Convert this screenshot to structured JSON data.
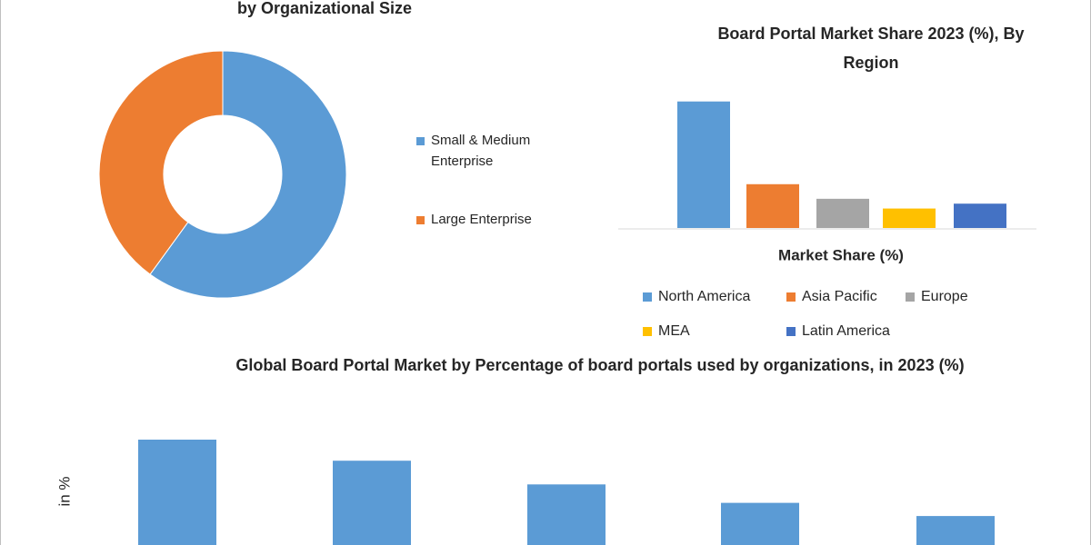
{
  "chart_data": [
    {
      "type": "donut",
      "title": "by Organizational Size",
      "categories": [
        "Small & Medium Enterprise",
        "Large Enterprise"
      ],
      "values": [
        60,
        40
      ],
      "colors": [
        "#5b9bd5",
        "#ed7d31"
      ],
      "legend": "right"
    },
    {
      "type": "bar",
      "title": "Board Portal Market Share 2023 (%), By Region",
      "xlabel": "Market Share (%)",
      "series": [
        {
          "name": "North America",
          "color": "#5b9bd5",
          "values": [
            52
          ]
        },
        {
          "name": "Asia Pacific",
          "color": "#ed7d31",
          "values": [
            18
          ]
        },
        {
          "name": "Europe",
          "color": "#a5a5a5",
          "values": [
            12
          ]
        },
        {
          "name": "MEA",
          "color": "#ffc000",
          "values": [
            8
          ]
        },
        {
          "name": "Latin America",
          "color": "#4472c4",
          "values": [
            10
          ]
        }
      ],
      "ylim": [
        0,
        56
      ],
      "legend": "bottom"
    },
    {
      "type": "bar",
      "title": "Global Board Portal Market by Percentage of board portals used by organizations, in 2023 (%)",
      "ylabel": "in %",
      "categories": [
        null,
        null,
        null,
        null,
        null
      ],
      "values": [
        40,
        32,
        23,
        16,
        11
      ],
      "color": "#5b9bd5",
      "ylim": [
        0,
        45
      ]
    }
  ]
}
